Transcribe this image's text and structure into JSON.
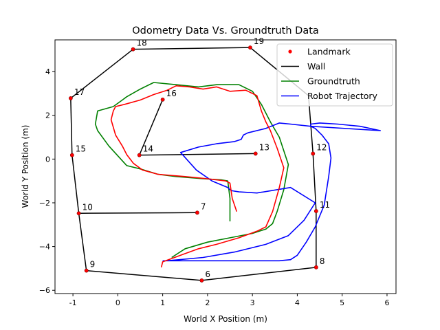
{
  "chart_data": {
    "type": "line",
    "title": "Odometry Data Vs. Groundtruth Data",
    "xlabel": "World X Position (m)",
    "ylabel": "World Y Position (m)",
    "xlim": [
      -1.4,
      6.2
    ],
    "ylim": [
      -6.15,
      5.45
    ],
    "xticks": [
      -1,
      0,
      1,
      2,
      3,
      4,
      5,
      6
    ],
    "yticks": [
      -6,
      -4,
      -2,
      0,
      2,
      4
    ],
    "grid": false,
    "legend": {
      "position": "top-right",
      "entries": [
        "Landmark",
        "Wall",
        "Groundtruth",
        "Robot Trajectory"
      ]
    },
    "colors": {
      "landmark": "#ff0000",
      "wall": "#000000",
      "groundtruth": "#008000",
      "robot_trajectory": "#0000ff",
      "odometry": "#ff0000"
    },
    "landmarks": [
      {
        "id": "6",
        "x": 1.87,
        "y": -5.55
      },
      {
        "id": "7",
        "x": 1.77,
        "y": -2.45
      },
      {
        "id": "8",
        "x": 4.42,
        "y": -4.95
      },
      {
        "id": "9",
        "x": -0.7,
        "y": -5.1
      },
      {
        "id": "10",
        "x": -0.87,
        "y": -2.48
      },
      {
        "id": "11",
        "x": 4.42,
        "y": -2.38
      },
      {
        "id": "12",
        "x": 4.35,
        "y": 0.25
      },
      {
        "id": "13",
        "x": 3.07,
        "y": 0.25
      },
      {
        "id": "14",
        "x": 0.48,
        "y": 0.18
      },
      {
        "id": "15",
        "x": -1.02,
        "y": 0.18
      },
      {
        "id": "16",
        "x": 1.0,
        "y": 2.72
      },
      {
        "id": "17",
        "x": -1.05,
        "y": 2.78
      },
      {
        "id": "18",
        "x": 0.34,
        "y": 5.02
      },
      {
        "id": "19",
        "x": 2.95,
        "y": 5.1
      }
    ],
    "walls": [
      {
        "from": "9",
        "to": "6"
      },
      {
        "from": "6",
        "to": "8"
      },
      {
        "from": "8",
        "to": "11"
      },
      {
        "from": "11",
        "to": "12"
      },
      {
        "from": "9",
        "to": "10"
      },
      {
        "from": "10",
        "to": "15"
      },
      {
        "from": "15",
        "to": "17"
      },
      {
        "from": "17",
        "to": "18"
      },
      {
        "from": "18",
        "to": "19"
      },
      {
        "from": "10",
        "to": "7"
      },
      {
        "from": "14",
        "to": "13"
      },
      {
        "from": "14",
        "to": "16"
      },
      {
        "points": [
          [
            2.95,
            5.1
          ],
          [
            4.25,
            2.9
          ]
        ]
      },
      {
        "points": [
          [
            4.25,
            2.9
          ],
          [
            4.35,
            0.25
          ]
        ]
      }
    ],
    "series": [
      {
        "name": "Groundtruth",
        "x": [
          2.5,
          2.5,
          2.45,
          2.3,
          1.9,
          1.3,
          0.9,
          0.5,
          0.2,
          -0.2,
          -0.45,
          -0.5,
          -0.45,
          -0.1,
          0.1,
          0.2,
          0.5,
          0.8,
          1.3,
          1.8,
          2.2,
          2.7,
          3.0,
          3.2,
          3.4,
          3.6,
          3.8,
          3.7,
          3.55,
          3.45,
          3.3,
          3.0,
          2.5,
          2.0,
          1.5,
          1.2
        ],
        "y": [
          -2.85,
          -1.8,
          -1.0,
          -0.95,
          -0.9,
          -0.8,
          -0.7,
          -0.45,
          -0.3,
          0.6,
          1.3,
          1.6,
          2.2,
          2.4,
          2.7,
          2.85,
          3.2,
          3.5,
          3.4,
          3.3,
          3.4,
          3.4,
          3.1,
          2.5,
          1.7,
          1.0,
          -0.25,
          -1.4,
          -2.4,
          -2.95,
          -3.2,
          -3.4,
          -3.6,
          -3.8,
          -4.1,
          -4.5
        ]
      },
      {
        "name": "Robot Trajectory",
        "x": [
          1.0,
          3.2,
          3.6,
          3.85,
          4.0,
          4.2,
          4.4,
          4.6,
          4.7,
          4.75,
          4.7,
          4.55,
          4.4,
          4.3,
          4.3,
          4.5,
          4.9,
          5.4,
          5.85,
          4.3,
          3.85,
          3.6,
          3.3,
          2.9,
          2.8,
          2.75,
          2.6,
          2.2,
          1.8,
          1.4,
          1.75,
          2.1,
          2.45,
          2.5,
          2.55,
          2.7,
          3.1,
          3.85,
          4.4,
          4.15,
          3.8,
          3.3,
          2.6,
          1.9,
          1.1
        ],
        "y": [
          -4.65,
          -4.65,
          -4.65,
          -4.6,
          -4.4,
          -3.8,
          -3.1,
          -2.1,
          -0.8,
          0.05,
          0.7,
          1.1,
          1.4,
          1.5,
          1.6,
          1.65,
          1.6,
          1.5,
          1.3,
          1.5,
          1.6,
          1.65,
          1.4,
          1.2,
          1.1,
          0.9,
          0.8,
          0.7,
          0.55,
          0.3,
          -0.5,
          -1.0,
          -1.3,
          -1.4,
          -1.45,
          -1.5,
          -1.55,
          -1.3,
          -2.0,
          -2.8,
          -3.5,
          -3.9,
          -4.25,
          -4.5,
          -4.65
        ]
      },
      {
        "name": "Odometry",
        "x": [
          2.65,
          2.55,
          2.5,
          2.4,
          2.0,
          1.5,
          0.9,
          0.55,
          0.35,
          0.2,
          0.1,
          -0.05,
          -0.15,
          -0.1,
          -0.05,
          0.15,
          0.5,
          0.8,
          1.1,
          1.3,
          1.6,
          1.9,
          2.2,
          2.5,
          2.85,
          3.1,
          3.2,
          3.3,
          3.4,
          3.55,
          3.7,
          3.6,
          3.45,
          3.3,
          3.1,
          2.7,
          2.2,
          1.8,
          1.4,
          1.0,
          0.97
        ],
        "y": [
          -2.4,
          -1.8,
          -1.1,
          -1.0,
          -0.9,
          -0.8,
          -0.7,
          -0.5,
          -0.2,
          0.2,
          0.6,
          1.1,
          1.8,
          2.2,
          2.4,
          2.5,
          2.7,
          2.95,
          3.15,
          3.35,
          3.3,
          3.2,
          3.3,
          3.1,
          3.15,
          2.9,
          2.2,
          1.7,
          1.3,
          0.5,
          -0.4,
          -1.3,
          -2.4,
          -3.1,
          -3.3,
          -3.6,
          -3.9,
          -4.1,
          -4.4,
          -4.7,
          -4.95
        ]
      }
    ]
  }
}
